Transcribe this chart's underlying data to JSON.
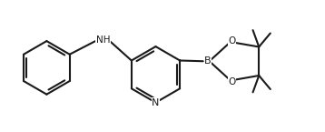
{
  "bg_color": "#ffffff",
  "line_color": "#1a1a1a",
  "line_width": 1.5,
  "figsize": [
    3.58,
    1.45
  ],
  "dpi": 100,
  "xlim": [
    0,
    9.5
  ],
  "ylim": [
    0,
    3.8
  ]
}
